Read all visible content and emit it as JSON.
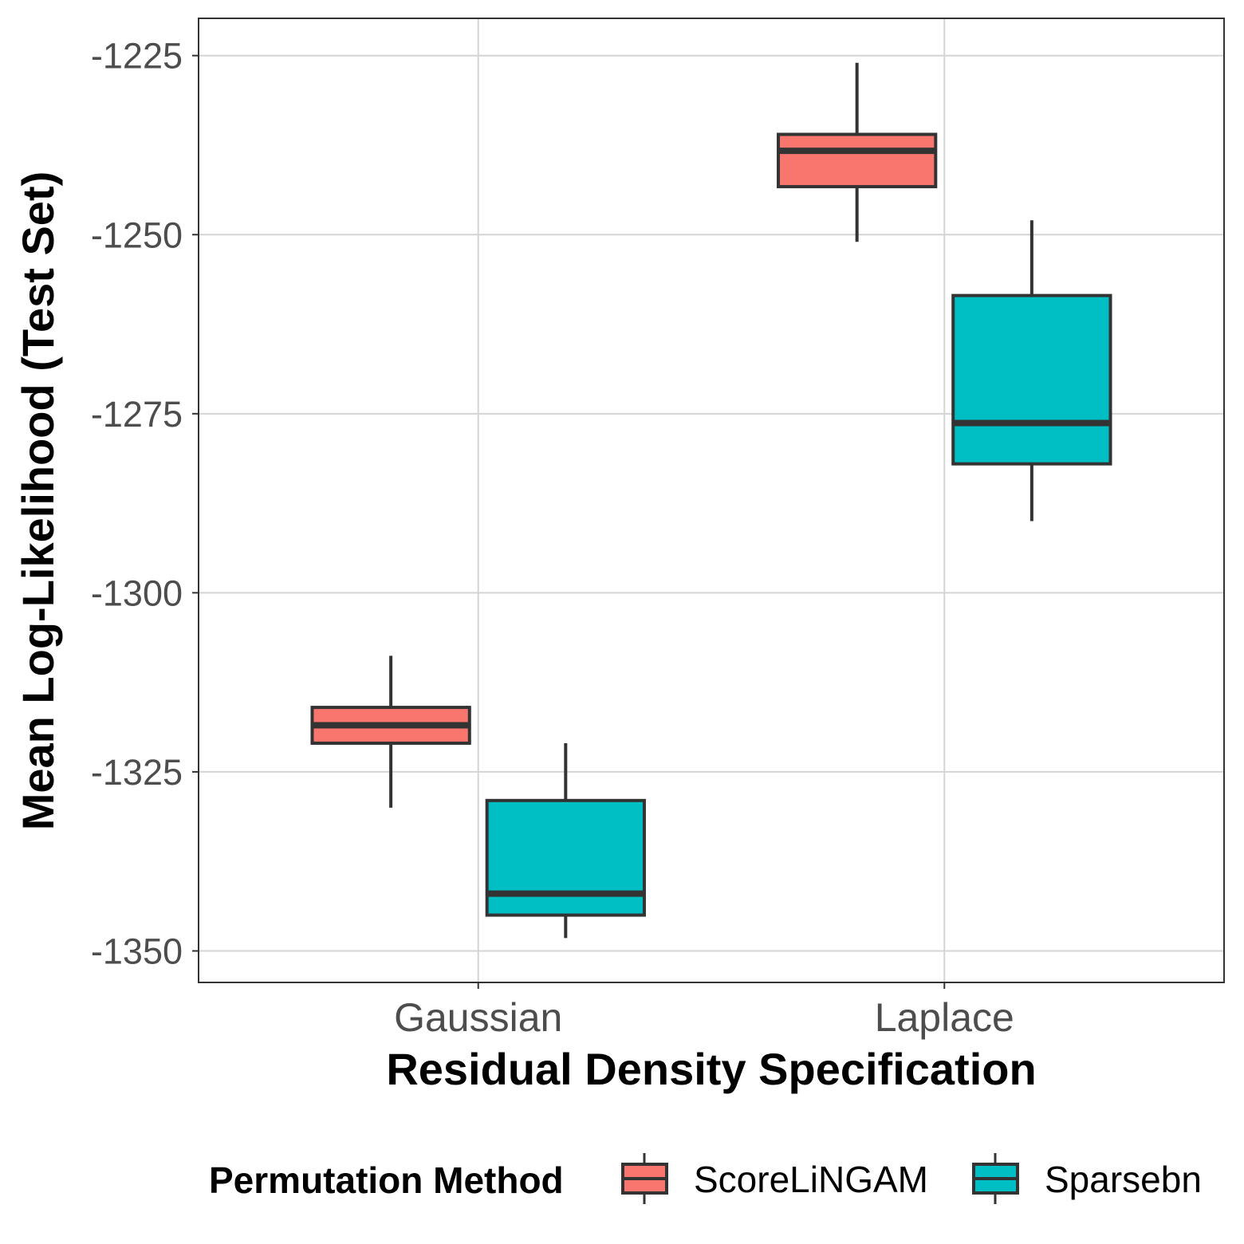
{
  "chart_data": {
    "type": "boxplot",
    "xlabel": "Residual Density Specification",
    "ylabel": "Mean Log-Likelihood (Test Set)",
    "categories": [
      "Gaussian",
      "Laplace"
    ],
    "ylim": [
      -1354.4,
      -1219.8
    ],
    "yticks": [
      -1225,
      -1250,
      -1275,
      -1300,
      -1325,
      -1350
    ],
    "grid": true,
    "legend": {
      "title": "Permutation Method",
      "position": "bottom"
    },
    "series": [
      {
        "name": "ScoreLiNGAM",
        "color": "#f8766d",
        "boxes": [
          {
            "category": "Gaussian",
            "min": -1330.0,
            "q1": -1321.0,
            "median": -1318.5,
            "q3": -1316.0,
            "max": -1308.8
          },
          {
            "category": "Laplace",
            "min": -1251.0,
            "q1": -1243.3,
            "median": -1238.3,
            "q3": -1236.0,
            "max": -1226.0
          }
        ]
      },
      {
        "name": "Sparsebn",
        "color": "#00bfc4",
        "boxes": [
          {
            "category": "Gaussian",
            "min": -1348.2,
            "q1": -1345.0,
            "median": -1342.0,
            "q3": -1329.0,
            "max": -1321.0
          },
          {
            "category": "Laplace",
            "min": -1290.0,
            "q1": -1282.0,
            "median": -1276.3,
            "q3": -1258.5,
            "max": -1248.0
          }
        ]
      }
    ]
  }
}
